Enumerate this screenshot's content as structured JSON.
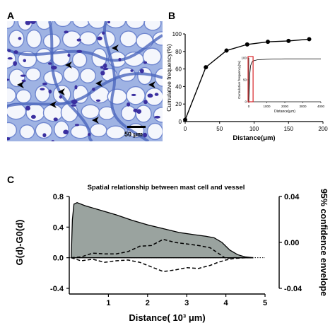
{
  "panels": {
    "a": {
      "letter": "A",
      "scale_bar_label": "50 μm",
      "arrowheads": 8
    },
    "b": {
      "letter": "B"
    },
    "c": {
      "letter": "C"
    }
  },
  "colors": {
    "tissue_bg": "#dde6f5",
    "tissue_cell": "#ffffff",
    "tissue_stroma": "#5576c4",
    "tissue_nuclei": "#3a2fa0",
    "fill_area": "#9aa39f",
    "line": "#000000",
    "inset_red": "#d9262a"
  },
  "chart_data": [
    {
      "id": "B",
      "type": "line",
      "title": "",
      "xlabel": "Distance(μm)",
      "ylabel": "Cumulative frequency(%)",
      "xlim": [
        0,
        200
      ],
      "ylim": [
        0,
        100
      ],
      "xticks": [
        0,
        50,
        100,
        150,
        200
      ],
      "yticks": [
        0,
        20,
        40,
        60,
        80,
        100
      ],
      "series": [
        {
          "x": [
            0,
            30,
            60,
            90,
            120,
            150,
            180
          ],
          "y": [
            2,
            62,
            81,
            88,
            91,
            92,
            94
          ]
        }
      ],
      "inset": {
        "type": "line",
        "xlabel": "Distance(μm)",
        "ylabel": "Cumulative frequency(%)",
        "xlim": [
          0,
          4000
        ],
        "ylim": [
          0,
          100
        ],
        "xticks": [
          0,
          1000,
          2000,
          3000,
          4000
        ],
        "yticks": [
          0,
          50,
          100
        ],
        "series": [
          {
            "x": [
              0,
              50,
              100,
              150,
              200,
              300,
              500,
              1000,
              2000,
              3000,
              4000
            ],
            "y": [
              0,
              60,
              82,
              88,
              92,
              94,
              96,
              97,
              98,
              98,
              98
            ]
          }
        ],
        "highlight_box_x": [
          0,
          200
        ]
      }
    },
    {
      "id": "C",
      "type": "area",
      "title": "Spatial relationship between mast cell and vessel",
      "xlabel": "Distance( 10³ μm)",
      "ylabel": "G(d)-G0(d)",
      "y2label": "95% confidence envelope",
      "xlim": [
        0,
        5
      ],
      "ylim": [
        -0.4,
        0.8
      ],
      "y2lim": [
        -0.04,
        0.04
      ],
      "xticks": [
        1,
        2,
        3,
        4,
        5
      ],
      "yticks": [
        -0.4,
        0.0,
        0.4,
        0.8
      ],
      "yticklabels": [
        "-0.4",
        "0.0",
        "0.4",
        "0.8"
      ],
      "y2ticks": [
        -0.04,
        0.0,
        0.04
      ],
      "y2ticklabels": [
        "-0.04",
        "0.00",
        "0.04"
      ],
      "series": [
        {
          "style": "filled",
          "x": [
            0.05,
            0.08,
            0.12,
            0.2,
            0.4,
            0.8,
            1.2,
            1.6,
            2.0,
            2.4,
            2.8,
            3.2,
            3.5,
            3.7,
            3.9,
            4.1,
            4.3,
            4.5,
            4.7
          ],
          "y": [
            0.0,
            0.5,
            0.7,
            0.72,
            0.68,
            0.62,
            0.56,
            0.49,
            0.43,
            0.38,
            0.33,
            0.3,
            0.28,
            0.26,
            0.2,
            0.1,
            0.04,
            0.01,
            0.0
          ]
        },
        {
          "style": "dashed-upper",
          "x": [
            0.05,
            0.3,
            0.6,
            0.9,
            1.2,
            1.5,
            1.8,
            2.1,
            2.4,
            2.7,
            3.0,
            3.3,
            3.6,
            3.8,
            4.0,
            4.2,
            4.5,
            4.7
          ],
          "y": [
            0.0,
            0.01,
            0.06,
            0.05,
            0.05,
            0.08,
            0.15,
            0.16,
            0.24,
            0.2,
            0.18,
            0.16,
            0.13,
            0.06,
            -0.01,
            0.0,
            0.0,
            0.0
          ]
        },
        {
          "style": "dashed-lower",
          "x": [
            0.05,
            0.3,
            0.6,
            0.9,
            1.2,
            1.5,
            1.8,
            2.1,
            2.4,
            2.7,
            3.0,
            3.3,
            3.6,
            3.8,
            4.0,
            4.2,
            4.5,
            4.7
          ],
          "y": [
            0.0,
            -0.04,
            -0.02,
            -0.06,
            -0.04,
            -0.03,
            -0.06,
            -0.12,
            -0.18,
            -0.16,
            -0.13,
            -0.14,
            -0.1,
            -0.06,
            -0.03,
            -0.01,
            0.0,
            0.0
          ]
        }
      ],
      "reference_line": {
        "y": 0.0,
        "style": "dotted"
      }
    }
  ]
}
